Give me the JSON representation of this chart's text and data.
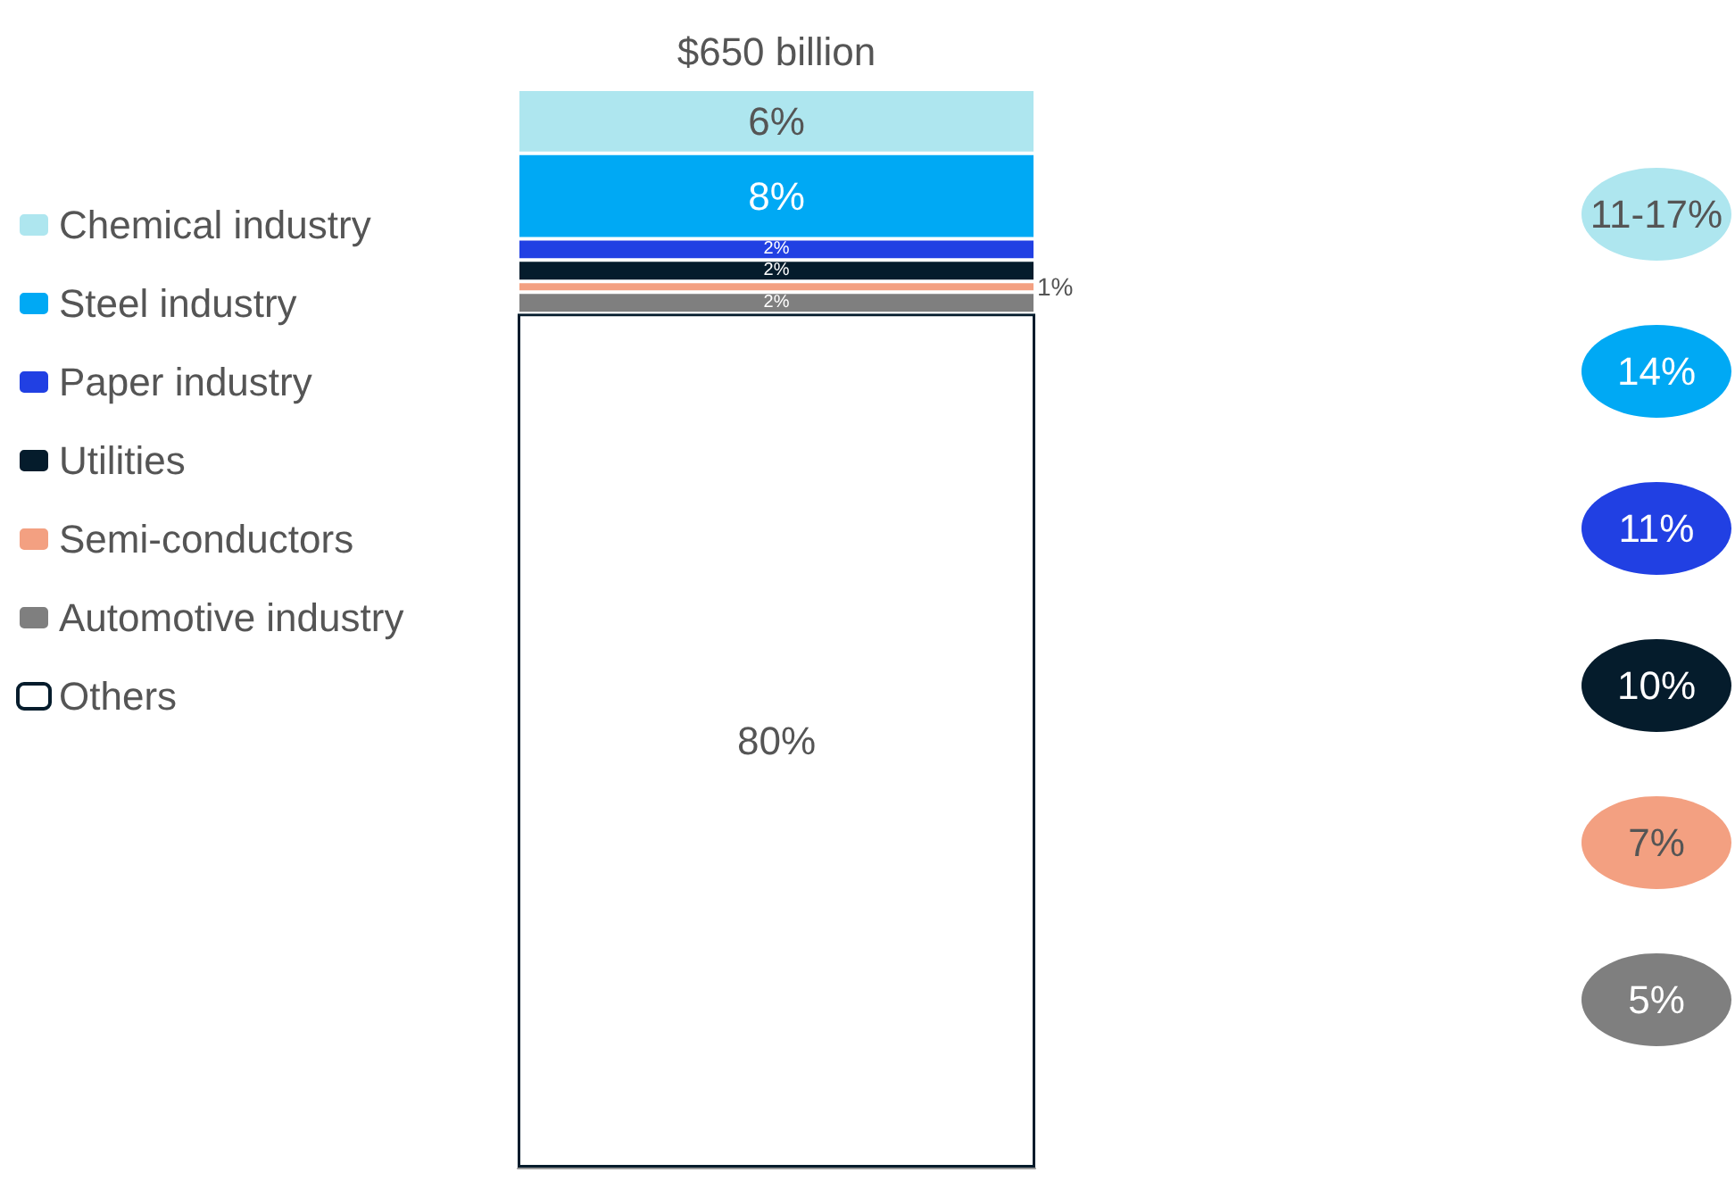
{
  "chart_data": {
    "type": "bar",
    "stacked": true,
    "categories": [
      null
    ],
    "title": "$650 billion",
    "legend": "left",
    "series": [
      {
        "name": "Others",
        "color": "#ffffff",
        "values": [
          80
        ],
        "value_labels": [
          "80%"
        ]
      },
      {
        "name": "Automotive industry",
        "color": "#7f7f7f",
        "values": [
          2
        ],
        "value_labels": [
          "2%"
        ]
      },
      {
        "name": "Semi-conductors",
        "color": "#f3a081",
        "values": [
          1
        ],
        "value_labels": [
          "1%"
        ]
      },
      {
        "name": "Utilities",
        "color": "#051c2c",
        "values": [
          2
        ],
        "value_labels": [
          "2%"
        ]
      },
      {
        "name": "Paper industry",
        "color": "#2140e3",
        "values": [
          2
        ],
        "value_labels": [
          "2%"
        ]
      },
      {
        "name": "Steel industry",
        "color": "#00a9f4",
        "values": [
          8
        ],
        "value_labels": [
          "8%"
        ]
      },
      {
        "name": "Chemical industry",
        "color": "#aee6ef",
        "values": [
          6
        ],
        "value_labels": [
          "6%"
        ]
      }
    ],
    "annotations": [
      "11-17%",
      "14%",
      "11%",
      "10%",
      "7%",
      "5%"
    ]
  }
}
